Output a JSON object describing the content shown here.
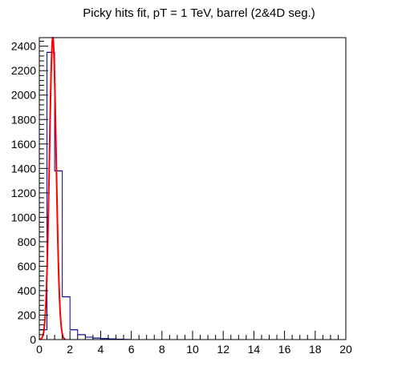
{
  "chart_data": {
    "type": "histogram",
    "title": "Picky hits fit, pT = 1 TeV, barrel (2&4D seg.)",
    "xlabel": "",
    "ylabel": "",
    "xlim": [
      0,
      20
    ],
    "ylim": [
      0,
      2470
    ],
    "x_ticks": [
      0,
      2,
      4,
      6,
      8,
      10,
      12,
      14,
      16,
      18,
      20
    ],
    "x_tick_labels": [
      "0",
      "2",
      "4",
      "6",
      "8",
      "10",
      "12",
      "14",
      "16",
      "18",
      "20"
    ],
    "y_ticks": [
      0,
      200,
      400,
      600,
      800,
      1000,
      1200,
      1400,
      1600,
      1800,
      2000,
      2200,
      2400
    ],
    "y_tick_labels": [
      "0",
      "200",
      "400",
      "600",
      "800",
      "1000",
      "1200",
      "1400",
      "1600",
      "1800",
      "2000",
      "2200",
      "2400"
    ],
    "grid": false,
    "series": [
      {
        "kind": "histogram",
        "color": "#000099",
        "bin_edges": [
          0,
          0.5,
          1.0,
          1.5,
          2.0,
          2.5,
          3.0,
          3.5,
          4.0,
          4.5,
          5.0,
          5.5,
          6.0
        ],
        "values": [
          80,
          2350,
          1380,
          350,
          80,
          40,
          20,
          12,
          8,
          5,
          3,
          1
        ],
        "tail_to": 20,
        "tail_value": 0
      },
      {
        "kind": "gaussian_fit",
        "color": "#ff0000",
        "amplitude": 2470,
        "mean": 0.88,
        "sigma": 0.22,
        "x_range": [
          0,
          1.7
        ]
      }
    ]
  }
}
